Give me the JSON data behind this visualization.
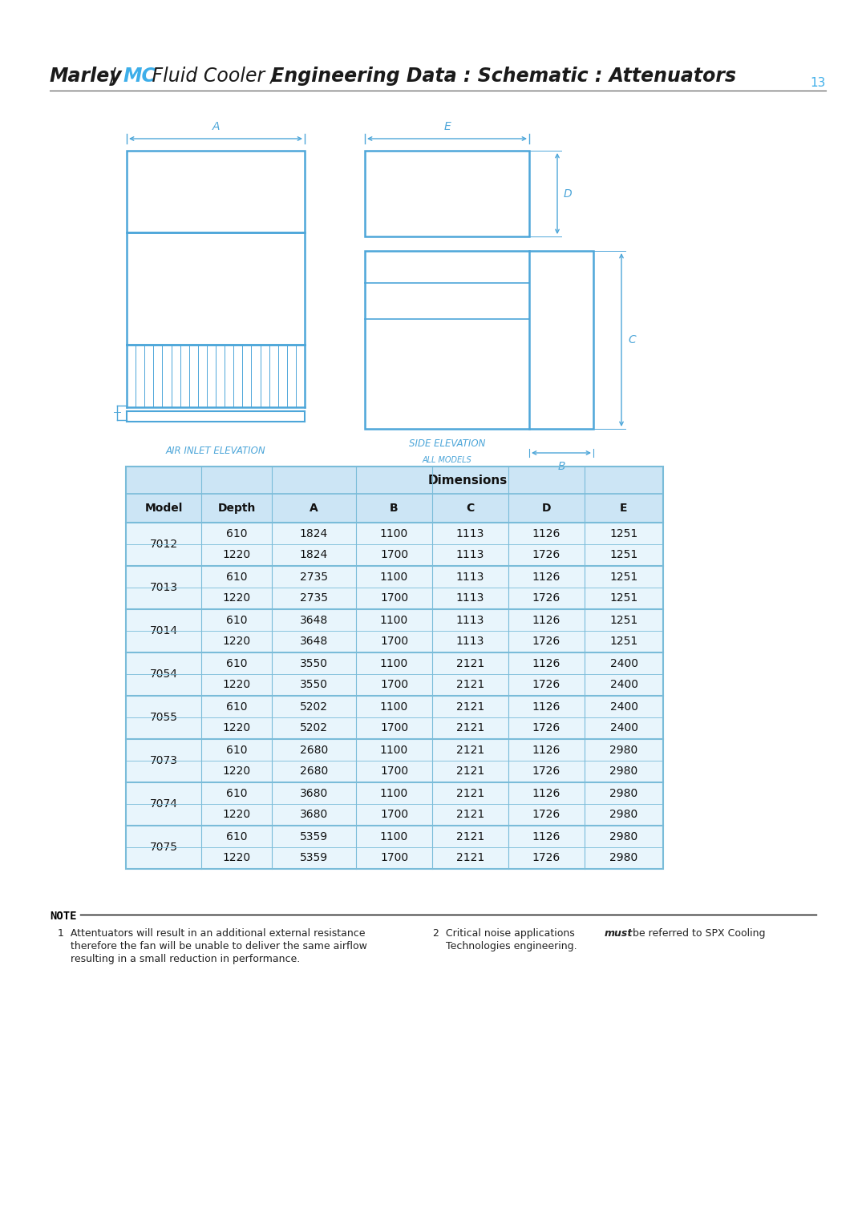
{
  "page_number": "13",
  "blue_color": "#4da6d9",
  "table_header_bg": "#cce5f5",
  "table_row_bg": "#e8f5fc",
  "table_border": "#7abcd9",
  "table_data": [
    {
      "model": "7012",
      "depth": 610,
      "A": 1824,
      "B": 1100,
      "C": 1113,
      "D": 1126,
      "E": 1251
    },
    {
      "model": "7012",
      "depth": 1220,
      "A": 1824,
      "B": 1700,
      "C": 1113,
      "D": 1726,
      "E": 1251
    },
    {
      "model": "7013",
      "depth": 610,
      "A": 2735,
      "B": 1100,
      "C": 1113,
      "D": 1126,
      "E": 1251
    },
    {
      "model": "7013",
      "depth": 1220,
      "A": 2735,
      "B": 1700,
      "C": 1113,
      "D": 1726,
      "E": 1251
    },
    {
      "model": "7014",
      "depth": 610,
      "A": 3648,
      "B": 1100,
      "C": 1113,
      "D": 1126,
      "E": 1251
    },
    {
      "model": "7014",
      "depth": 1220,
      "A": 3648,
      "B": 1700,
      "C": 1113,
      "D": 1726,
      "E": 1251
    },
    {
      "model": "7054",
      "depth": 610,
      "A": 3550,
      "B": 1100,
      "C": 2121,
      "D": 1126,
      "E": 2400
    },
    {
      "model": "7054",
      "depth": 1220,
      "A": 3550,
      "B": 1700,
      "C": 2121,
      "D": 1726,
      "E": 2400
    },
    {
      "model": "7055",
      "depth": 610,
      "A": 5202,
      "B": 1100,
      "C": 2121,
      "D": 1126,
      "E": 2400
    },
    {
      "model": "7055",
      "depth": 1220,
      "A": 5202,
      "B": 1700,
      "C": 2121,
      "D": 1726,
      "E": 2400
    },
    {
      "model": "7073",
      "depth": 610,
      "A": 2680,
      "B": 1100,
      "C": 2121,
      "D": 1126,
      "E": 2980
    },
    {
      "model": "7073",
      "depth": 1220,
      "A": 2680,
      "B": 1700,
      "C": 2121,
      "D": 1726,
      "E": 2980
    },
    {
      "model": "7074",
      "depth": 610,
      "A": 3680,
      "B": 1100,
      "C": 2121,
      "D": 1126,
      "E": 2980
    },
    {
      "model": "7074",
      "depth": 1220,
      "A": 3680,
      "B": 1700,
      "C": 2121,
      "D": 1726,
      "E": 2980
    },
    {
      "model": "7075",
      "depth": 610,
      "A": 5359,
      "B": 1100,
      "C": 2121,
      "D": 1126,
      "E": 2980
    },
    {
      "model": "7075",
      "depth": 1220,
      "A": 5359,
      "B": 1700,
      "C": 2121,
      "D": 1726,
      "E": 2980
    }
  ]
}
